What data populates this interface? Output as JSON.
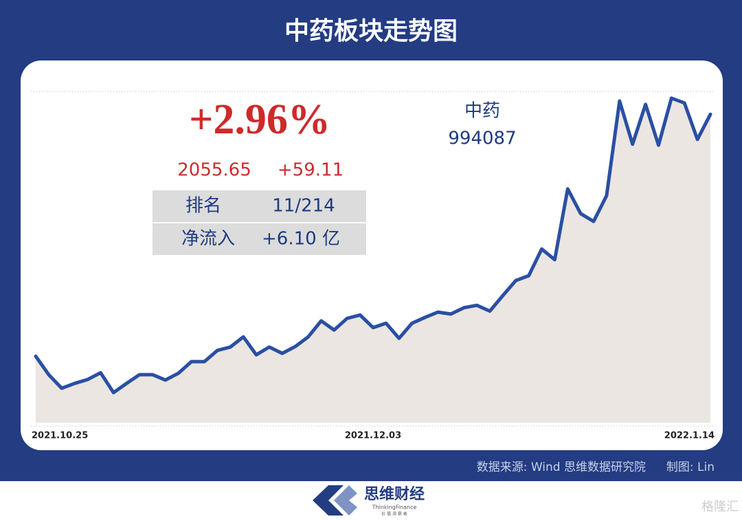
{
  "chart_data": {
    "type": "line",
    "title": "中药板块走势图",
    "change_pct": "+2.96%",
    "last_price": "2055.65",
    "change": "+59.11",
    "stats": [
      [
        "排名",
        "11/214"
      ],
      [
        "净流入",
        "+6.10 亿"
      ]
    ],
    "index_name": "中药",
    "index_code": "994087",
    "categories": [
      "2021.10.25",
      null,
      null,
      null,
      null,
      null,
      null,
      null,
      null,
      null,
      null,
      null,
      null,
      null,
      null,
      null,
      null,
      null,
      null,
      null,
      null,
      null,
      null,
      null,
      null,
      null,
      "2021.12.03",
      null,
      null,
      null,
      null,
      null,
      null,
      null,
      null,
      null,
      null,
      null,
      null,
      null,
      null,
      null,
      null,
      null,
      null,
      null,
      null,
      null,
      null,
      null,
      null,
      null,
      "2022.1.14"
    ],
    "values": [
      1557,
      1519,
      1491,
      1501,
      1509,
      1523,
      1482,
      1501,
      1519,
      1519,
      1508,
      1522,
      1546,
      1546,
      1569,
      1576,
      1597,
      1560,
      1576,
      1563,
      1577,
      1597,
      1630,
      1611,
      1635,
      1642,
      1616,
      1625,
      1594,
      1625,
      1637,
      1648,
      1644,
      1657,
      1662,
      1650,
      1682,
      1713,
      1723,
      1778,
      1756,
      1902,
      1851,
      1835,
      1888,
      2083,
      1994,
      2076,
      1992,
      2089,
      2079,
      2004,
      2055.65
    ],
    "color": "#2a4fa3",
    "ylim": [
      1420,
      2100
    ]
  },
  "footer": {
    "source": "数据来源: Wind  思维数据研究院",
    "author": "制图: Lin",
    "brand": "思维财经",
    "brand_en": "ThinkingFinance",
    "slogan": "价 值 洞 察 者",
    "watermark": "格隆汇"
  }
}
